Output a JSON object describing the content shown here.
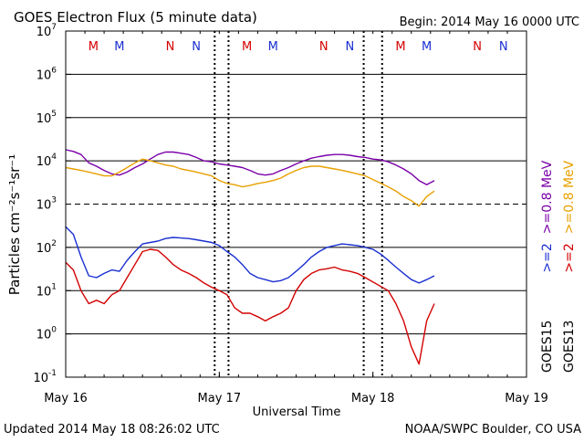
{
  "chart_data": {
    "type": "line",
    "title": "GOES Electron Flux (5 minute data)",
    "begin_label": "Begin: 2014 May 16 0000 UTC",
    "updated": "Updated 2014 May 18 08:26:02 UTC",
    "credit": "NOAA/SWPC Boulder, CO USA",
    "xlabel": "Universal Time",
    "ylabel": "Particles cm⁻²s⁻¹sr⁻¹",
    "x_ticks": [
      {
        "label": "May 16",
        "day": 0
      },
      {
        "label": "May 17",
        "day": 1
      },
      {
        "label": "May 18",
        "day": 2
      },
      {
        "label": "May 19",
        "day": 3
      }
    ],
    "xlim_days": [
      0,
      3
    ],
    "y_scale": "log",
    "y_tick_labels": [
      {
        "mantissa": "10",
        "exp": "-1",
        "value": 0.1
      },
      {
        "mantissa": "10",
        "exp": "0",
        "value": 1
      },
      {
        "mantissa": "10",
        "exp": "1",
        "value": 10
      },
      {
        "mantissa": "10",
        "exp": "2",
        "value": 100
      },
      {
        "mantissa": "10",
        "exp": "3",
        "value": 1000
      },
      {
        "mantissa": "10",
        "exp": "4",
        "value": 10000
      },
      {
        "mantissa": "10",
        "exp": "5",
        "value": 100000
      },
      {
        "mantissa": "10",
        "exp": "6",
        "value": 1000000
      },
      {
        "mantissa": "10",
        "exp": "7",
        "value": 10000000
      }
    ],
    "ylim": [
      0.1,
      10000000
    ],
    "threshold_line": 1000,
    "local_time_markers": [
      {
        "label": "M",
        "day": 0.18,
        "color": "#d40000"
      },
      {
        "label": "M",
        "day": 0.35,
        "color": "#1a2fd0"
      },
      {
        "label": "N",
        "day": 0.68,
        "color": "#d40000"
      },
      {
        "label": "N",
        "day": 0.85,
        "color": "#1a2fd0"
      },
      {
        "label": "M",
        "day": 1.18,
        "color": "#d40000"
      },
      {
        "label": "M",
        "day": 1.35,
        "color": "#1a2fd0"
      },
      {
        "label": "N",
        "day": 1.68,
        "color": "#d40000"
      },
      {
        "label": "N",
        "day": 1.85,
        "color": "#1a2fd0"
      },
      {
        "label": "M",
        "day": 2.18,
        "color": "#d40000"
      },
      {
        "label": "M",
        "day": 2.35,
        "color": "#1a2fd0"
      },
      {
        "label": "N",
        "day": 2.68,
        "color": "#d40000"
      },
      {
        "label": "N",
        "day": 2.85,
        "color": "#1a2fd0"
      }
    ],
    "dotted_verticals_days": [
      0.97,
      1.06,
      1.94,
      2.06
    ],
    "legend": [
      {
        "text": "GOES15",
        "color": "#000000"
      },
      {
        "text": ">=2",
        "color": "#1a2fd0"
      },
      {
        "text": ">=0.8  MeV",
        "color": "#7a00a8"
      },
      {
        "text": "GOES13",
        "color": "#000000"
      },
      {
        "text": ">=2",
        "color": "#d40000"
      },
      {
        "text": ">=0.8  MeV",
        "color": "#e8a000"
      }
    ],
    "series": [
      {
        "name": "GOES15 >=0.8 MeV",
        "color": "#7a00a8",
        "x": [
          0.0,
          0.05,
          0.1,
          0.15,
          0.2,
          0.25,
          0.3,
          0.35,
          0.4,
          0.45,
          0.5,
          0.55,
          0.6,
          0.65,
          0.7,
          0.75,
          0.8,
          0.85,
          0.9,
          0.95,
          1.0,
          1.05,
          1.1,
          1.15,
          1.2,
          1.25,
          1.3,
          1.35,
          1.4,
          1.45,
          1.5,
          1.55,
          1.6,
          1.65,
          1.7,
          1.75,
          1.8,
          1.85,
          1.9,
          1.95,
          2.0,
          2.05,
          2.1,
          2.15,
          2.2,
          2.25,
          2.3,
          2.35,
          2.4
        ],
        "values": [
          18000,
          16500,
          14000,
          9000,
          7500,
          6000,
          5000,
          4700,
          5500,
          7000,
          8500,
          11000,
          14000,
          16000,
          16000,
          15000,
          14000,
          12000,
          10000,
          9500,
          8500,
          8000,
          7500,
          7000,
          6000,
          5000,
          4700,
          5000,
          6000,
          7000,
          8500,
          10000,
          11500,
          12500,
          13500,
          14000,
          14000,
          13500,
          12500,
          12000,
          11000,
          10500,
          9500,
          8000,
          6500,
          5000,
          3500,
          2800,
          3500
        ]
      },
      {
        "name": "GOES13 >=0.8 MeV",
        "color": "#e8a000",
        "x": [
          0.0,
          0.05,
          0.1,
          0.15,
          0.2,
          0.25,
          0.3,
          0.35,
          0.4,
          0.45,
          0.5,
          0.55,
          0.6,
          0.65,
          0.7,
          0.75,
          0.8,
          0.85,
          0.9,
          0.95,
          1.0,
          1.05,
          1.1,
          1.15,
          1.2,
          1.25,
          1.3,
          1.35,
          1.4,
          1.45,
          1.5,
          1.55,
          1.6,
          1.65,
          1.7,
          1.75,
          1.8,
          1.85,
          1.9,
          1.95,
          2.1,
          2.15,
          2.2,
          2.25,
          2.3,
          2.35,
          2.4
        ],
        "values": [
          7000,
          6500,
          6000,
          5500,
          5000,
          4500,
          4500,
          5500,
          7000,
          9000,
          11000,
          10000,
          9000,
          8000,
          7500,
          6500,
          6000,
          5500,
          5000,
          4500,
          3500,
          3000,
          2800,
          2500,
          2700,
          3000,
          3200,
          3500,
          4000,
          5000,
          6000,
          7000,
          7500,
          7500,
          7000,
          6500,
          6000,
          5500,
          5000,
          4500,
          2500,
          2000,
          1500,
          1200,
          900,
          1500,
          2000
        ]
      },
      {
        "name": "GOES15 >=2 MeV",
        "color": "#1a2fd0",
        "x": [
          0.0,
          0.05,
          0.1,
          0.15,
          0.2,
          0.25,
          0.3,
          0.35,
          0.4,
          0.45,
          0.5,
          0.55,
          0.6,
          0.65,
          0.7,
          0.75,
          0.8,
          0.85,
          0.9,
          0.95,
          1.0,
          1.05,
          1.1,
          1.15,
          1.2,
          1.25,
          1.3,
          1.35,
          1.4,
          1.45,
          1.5,
          1.55,
          1.6,
          1.65,
          1.7,
          1.75,
          1.8,
          1.85,
          1.9,
          1.95,
          2.0,
          2.05,
          2.1,
          2.15,
          2.2,
          2.25,
          2.3,
          2.35,
          2.4
        ],
        "values": [
          300,
          200,
          60,
          22,
          20,
          25,
          30,
          28,
          50,
          80,
          120,
          130,
          140,
          160,
          170,
          165,
          160,
          150,
          140,
          130,
          110,
          80,
          60,
          40,
          25,
          20,
          18,
          16,
          17,
          20,
          28,
          40,
          60,
          80,
          100,
          110,
          120,
          115,
          110,
          100,
          90,
          70,
          50,
          35,
          25,
          18,
          15,
          18,
          22
        ]
      },
      {
        "name": "GOES13 >=2 MeV",
        "color": "#d40000",
        "x": [
          0.0,
          0.05,
          0.1,
          0.15,
          0.2,
          0.25,
          0.3,
          0.35,
          0.4,
          0.45,
          0.5,
          0.55,
          0.6,
          0.65,
          0.7,
          0.75,
          0.8,
          0.85,
          0.9,
          0.95,
          1.0,
          1.05,
          1.1,
          1.15,
          1.2,
          1.25,
          1.3,
          1.35,
          1.4,
          1.45,
          1.5,
          1.55,
          1.6,
          1.65,
          1.7,
          1.75,
          1.8,
          1.85,
          1.9,
          1.95,
          2.1,
          2.15,
          2.2,
          2.25,
          2.3,
          2.35,
          2.4
        ],
        "values": [
          45,
          30,
          10,
          5,
          6,
          5,
          8,
          10,
          20,
          40,
          80,
          90,
          85,
          60,
          40,
          30,
          25,
          20,
          15,
          12,
          10,
          8,
          4,
          3,
          3,
          2.5,
          2,
          2.5,
          3,
          4,
          10,
          18,
          25,
          30,
          32,
          35,
          30,
          28,
          25,
          20,
          10,
          5,
          2,
          0.5,
          0.2,
          2,
          5
        ]
      }
    ]
  }
}
